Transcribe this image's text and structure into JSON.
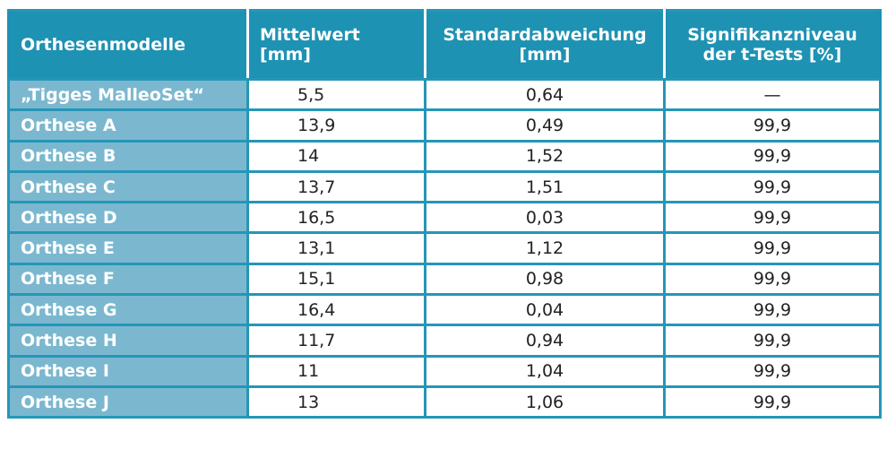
{
  "table": {
    "columns": [
      "Orthesenmodelle",
      "Mittelwert [mm]",
      "Standardabweichung [mm]",
      "Signifikanzniveau der t-Tests [%]"
    ],
    "rows": [
      [
        "„Tigges MalleoSet“",
        "5,5",
        "0,64",
        "—"
      ],
      [
        "Orthese A",
        "13,9",
        "0,49",
        "99,9"
      ],
      [
        "Orthese B",
        "14",
        "1,52",
        "99,9"
      ],
      [
        "Orthese C",
        "13,7",
        "1,51",
        "99,9"
      ],
      [
        "Orthese D",
        "16,5",
        "0,03",
        "99,9"
      ],
      [
        "Orthese E",
        "13,1",
        "1,12",
        "99,9"
      ],
      [
        "Orthese F",
        "15,1",
        "0,98",
        "99,9"
      ],
      [
        "Orthese G",
        "16,4",
        "0,04",
        "99,9"
      ],
      [
        "Orthese H",
        "11,7",
        "0,94",
        "99,9"
      ],
      [
        "Orthese I",
        "11",
        "1,04",
        "99,9"
      ],
      [
        "Orthese J",
        "13",
        "1,06",
        "99,9"
      ]
    ]
  }
}
